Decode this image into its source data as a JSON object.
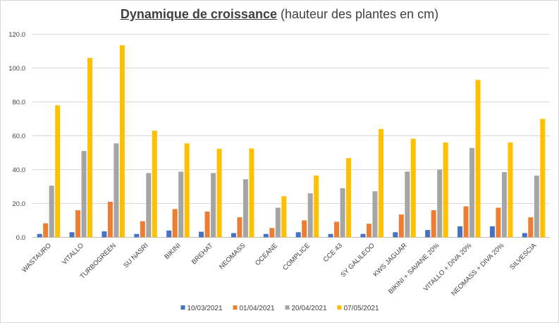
{
  "chart_data": {
    "type": "bar",
    "title": "Dynamique de croissance",
    "subtitle": "(hauteur des plantes en cm)",
    "ylim": [
      0,
      120
    ],
    "yticks": [
      "0.0",
      "20.0",
      "40.0",
      "60.0",
      "80.0",
      "100.0",
      "120.0"
    ],
    "grid": true,
    "legend_position": "bottom",
    "categories": [
      "WASTAURO",
      "VITALLO",
      "TURBOGREEN",
      "SU NASRI",
      "BIKINI",
      "BREHAT",
      "NEOMASS",
      "OCEANE",
      "COMPLICE",
      "CCE 43",
      "SY GALILEOO",
      "KWS JAGUAR",
      "BIKINI + SAVANE 20%",
      "VITALLO + DIVA 20%",
      "NEOMASS + DIVA 20%",
      "SILVESCIA"
    ],
    "series": [
      {
        "name": "10/03/2021",
        "color": "#4472c4",
        "values": [
          2.0,
          3.0,
          3.5,
          2.0,
          4.0,
          3.3,
          2.5,
          2.0,
          3.0,
          2.0,
          2.0,
          3.0,
          4.3,
          6.5,
          6.5,
          2.5
        ]
      },
      {
        "name": "01/04/2021",
        "color": "#ed7d31",
        "values": [
          8.3,
          16.0,
          21.0,
          9.5,
          16.7,
          15.2,
          11.8,
          5.5,
          10.0,
          9.2,
          8.0,
          13.5,
          16.0,
          18.3,
          17.5,
          11.8
        ]
      },
      {
        "name": "20/04/2021",
        "color": "#a5a5a5",
        "values": [
          30.5,
          51.0,
          55.5,
          38.0,
          38.8,
          38.0,
          34.3,
          17.5,
          26.0,
          29.0,
          27.2,
          38.8,
          40.0,
          52.8,
          38.5,
          36.5
        ]
      },
      {
        "name": "07/05/2021",
        "color": "#ffc000",
        "values": [
          78.0,
          106.0,
          113.5,
          63.0,
          55.5,
          52.3,
          52.5,
          24.3,
          36.5,
          46.8,
          64.0,
          58.2,
          56.0,
          93.0,
          56.0,
          70.0
        ]
      }
    ]
  }
}
